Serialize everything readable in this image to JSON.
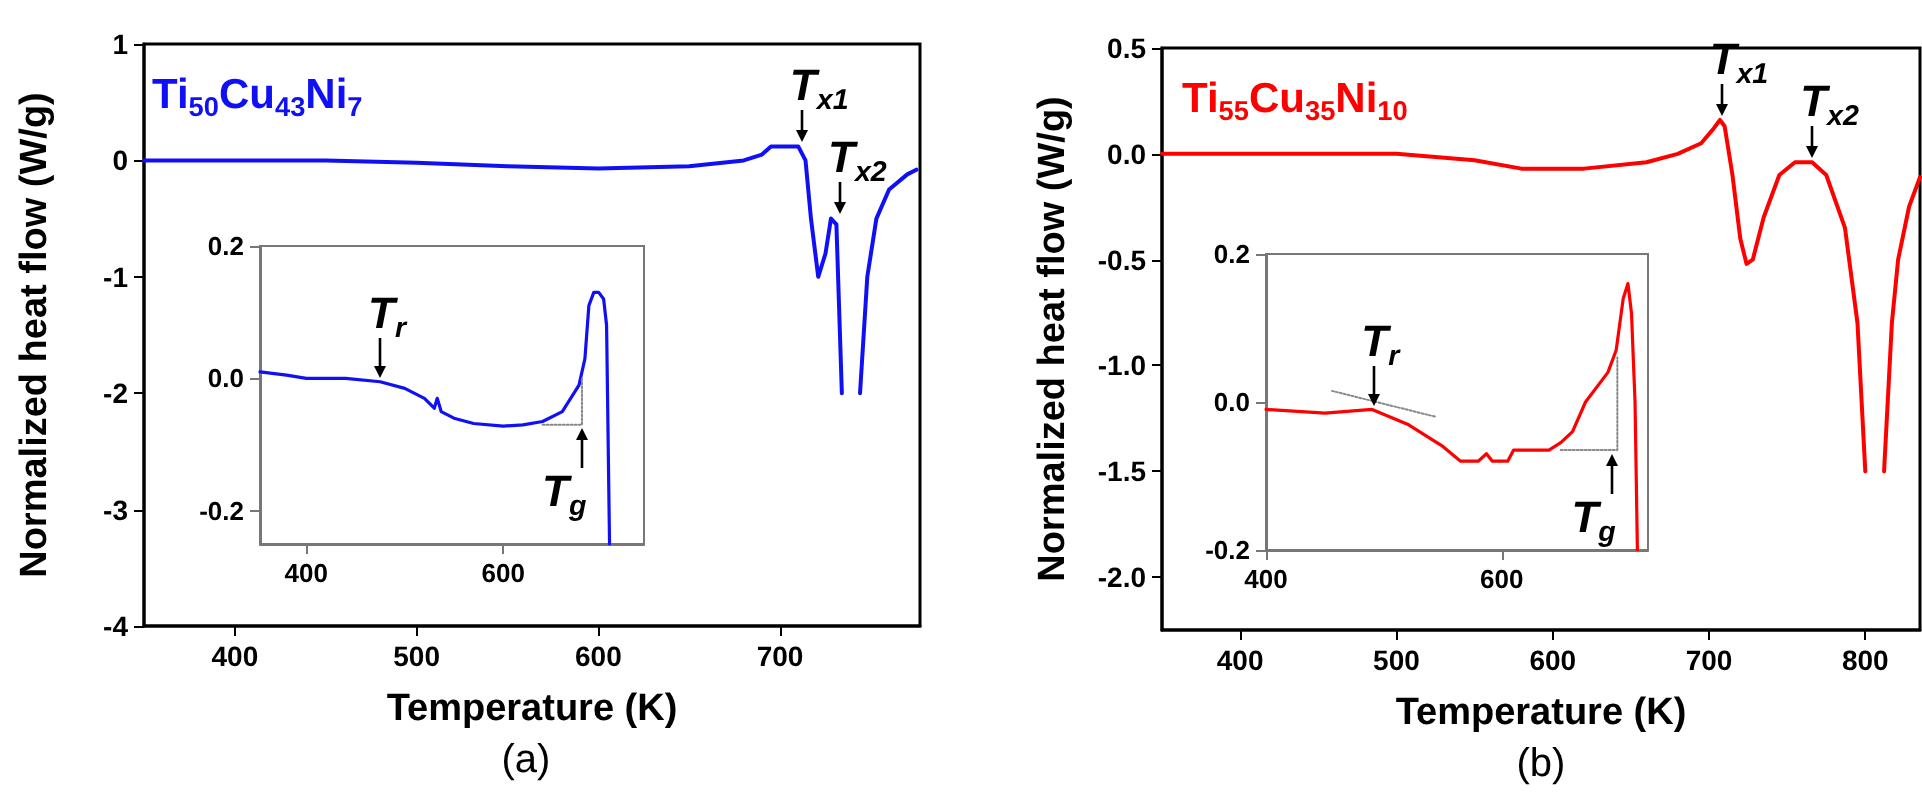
{
  "chart_data": [
    {
      "type": "line",
      "xlabel": "Temperature (K)",
      "ylabel": "Normalized heat flow (W/g)",
      "xlim": [
        350,
        777
      ],
      "ylim": [
        -4,
        1
      ],
      "xticks": [
        400,
        500,
        600,
        700
      ],
      "yticks": [
        1,
        0,
        -1,
        -2,
        -3,
        -4
      ],
      "marker": "none",
      "legend": "top left",
      "series": [
        {
          "name": "Ti$_{50}$Cu$_{43}$Ni$_{7}$",
          "color": "#1010f5",
          "x": [
            350,
            400,
            450,
            500,
            550,
            600,
            650,
            680,
            690,
            695,
            710,
            714,
            717,
            721,
            725,
            728,
            731,
            734,
            736,
            741,
            744,
            748,
            753,
            760,
            770,
            775
          ],
          "values": [
            0,
            0,
            0,
            -0.02,
            -0.05,
            -0.07,
            -0.05,
            0,
            0.05,
            0.12,
            0.12,
            0,
            -0.5,
            -1.0,
            -0.8,
            -0.5,
            -0.55,
            -2,
            null,
            null,
            -2,
            -1,
            -0.5,
            -0.25,
            -0.12,
            -0.08
          ]
        }
      ],
      "annotations": [
        {
          "text": "T$_{x1}$",
          "x": 712,
          "y": 0.12
        },
        {
          "text": "T$_{x2}$",
          "x": 733,
          "y": -0.5
        },
        "(a)"
      ]
    },
    {
      "type": "line",
      "xlim": [
        353,
        743
      ],
      "ylim": [
        -0.25,
        0.2
      ],
      "xticks": [
        400,
        600
      ],
      "yticks": [
        {
          "value": 0.2,
          "label": "0.2"
        },
        {
          "value": 0,
          "label": "0.0"
        },
        {
          "value": -0.2,
          "label": "-0.2"
        }
      ],
      "marker": "none",
      "series": [
        {
          "color": "#1010f5",
          "x": [
            353,
            380,
            400,
            440,
            475,
            500,
            520,
            530,
            533,
            537,
            550,
            570,
            600,
            620,
            640,
            660,
            677,
            683,
            687,
            692,
            697,
            702,
            705,
            708
          ],
          "values": [
            0.01,
            0.005,
            0,
            0,
            -0.005,
            -0.015,
            -0.03,
            -0.045,
            -0.03,
            -0.05,
            -0.06,
            -0.068,
            -0.072,
            -0.07,
            -0.065,
            -0.05,
            -0.01,
            0.03,
            0.11,
            0.13,
            0.13,
            0.12,
            0.08,
            -0.25
          ]
        },
        {
          "color": "#888888",
          "line_style": "dotted",
          "x": [
            640,
            680,
            680
          ],
          "values": [
            -0.07,
            -0.07,
            0
          ]
        }
      ],
      "annotations": [
        {
          "text": "T$_{r}$",
          "x": 475,
          "y": -0.005
        },
        {
          "text": "T$_{g}$",
          "x": 680,
          "y": -0.07
        }
      ]
    },
    {
      "type": "line",
      "xlabel": "Temperature (K)",
      "ylabel": "Normalized heat flow (W/g)",
      "xlim": [
        350,
        835
      ],
      "ylim": [
        -2.25,
        0.5
      ],
      "xticks": [
        400,
        500,
        600,
        700,
        800
      ],
      "yticks": [
        {
          "value": 0.5,
          "label": "0.5"
        },
        {
          "value": 0,
          "label": "0.0"
        },
        {
          "value": -0.5,
          "label": "-0.5"
        },
        {
          "value": -1,
          "label": "-1.0"
        },
        {
          "value": -1.5,
          "label": "-1.5"
        },
        {
          "value": -2,
          "label": "-2.0"
        }
      ],
      "marker": "none",
      "legend": "top left",
      "series": [
        {
          "name": "Ti$_{55}$Cu$_{35}$Ni$_{10}$",
          "color": "#ff0000",
          "x": [
            350,
            450,
            500,
            550,
            580,
            620,
            660,
            680,
            695,
            703,
            707,
            710,
            715,
            720,
            724,
            728,
            735,
            745,
            755,
            766,
            775,
            787,
            795,
            800,
            804,
            808,
            812,
            817,
            821,
            828,
            835
          ],
          "values": [
            0,
            0,
            0,
            -0.03,
            -0.07,
            -0.07,
            -0.04,
            0,
            0.05,
            0.12,
            0.16,
            0.13,
            -0.1,
            -0.4,
            -0.52,
            -0.5,
            -0.3,
            -0.1,
            -0.04,
            -0.04,
            -0.1,
            -0.35,
            -0.8,
            -1.5,
            null,
            null,
            -1.5,
            -0.8,
            -0.5,
            -0.25,
            -0.11
          ]
        }
      ],
      "annotations": [
        {
          "text": "T$_{x1}$",
          "x": 708,
          "y": 0.16
        },
        {
          "text": "T$_{x2}$",
          "x": 766,
          "y": -0.04
        },
        "(b)"
      ]
    },
    {
      "type": "line",
      "xlim": [
        400,
        724
      ],
      "ylim": [
        -0.2,
        0.2
      ],
      "xticks": [
        400,
        600
      ],
      "yticks": [
        {
          "value": 0.2,
          "label": "0.2"
        },
        {
          "value": 0,
          "label": "0.0"
        },
        {
          "value": -0.2,
          "label": "-0.2"
        }
      ],
      "marker": "none",
      "series": [
        {
          "color": "#ff0000",
          "x": [
            400,
            450,
            490,
            520,
            550,
            565,
            580,
            587,
            592,
            605,
            610,
            640,
            650,
            660,
            671,
            690,
            697,
            703,
            707,
            710,
            713,
            715
          ],
          "values": [
            -0.01,
            -0.015,
            -0.01,
            -0.03,
            -0.06,
            -0.08,
            -0.08,
            -0.07,
            -0.08,
            -0.08,
            -0.065,
            -0.065,
            -0.055,
            -0.04,
            0,
            0.04,
            0.07,
            0.14,
            0.16,
            0.12,
            0,
            -0.2
          ]
        },
        {
          "color": "#888888",
          "line_style": "dotted",
          "x": [
            456,
            544
          ],
          "values": [
            0.015,
            -0.02
          ]
        },
        {
          "color": "#888888",
          "line_style": "dotted",
          "x": [
            650,
            698,
            698
          ],
          "values": [
            -0.065,
            -0.065,
            0.06
          ]
        }
      ],
      "annotations": [
        {
          "text": "T$_{r}$",
          "x": 491,
          "y": -0.01
        },
        {
          "text": "T$_{g}$",
          "x": 693,
          "y": -0.065
        }
      ]
    }
  ]
}
